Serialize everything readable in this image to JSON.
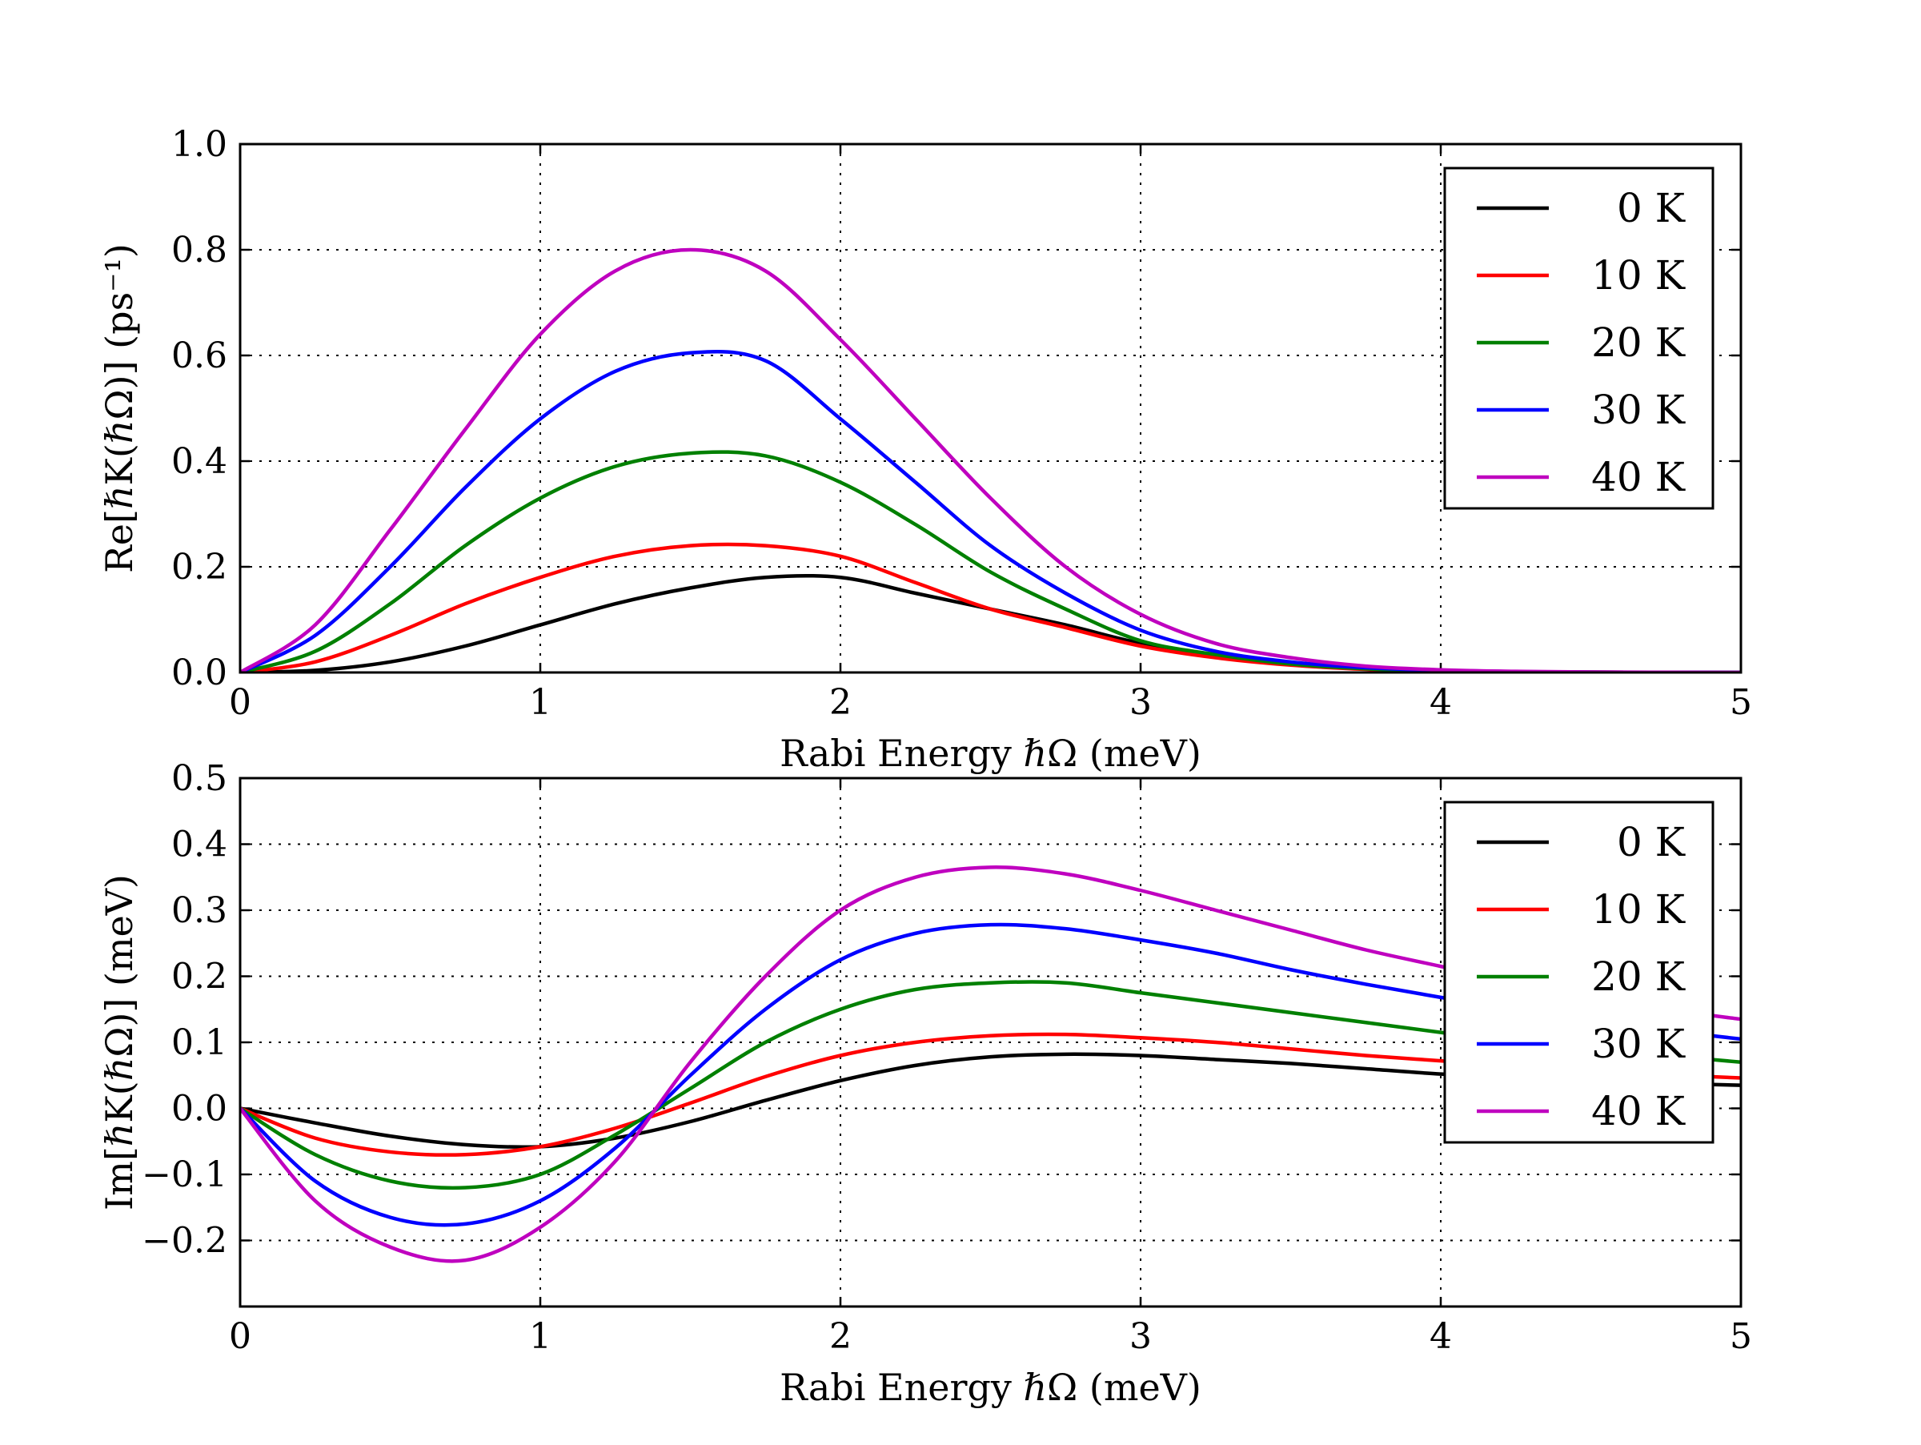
{
  "chart_data": [
    {
      "type": "line",
      "xlabel": "Rabi Energy ℏΩ (meV)",
      "ylabel": "Re[ℏK(ℏΩ)] (ps⁻¹)",
      "xlim": [
        0,
        5
      ],
      "ylim": [
        0,
        1.0
      ],
      "xticks": [
        "0",
        "1",
        "2",
        "3",
        "4",
        "5"
      ],
      "xtick_values": [
        0,
        1,
        2,
        3,
        4,
        5
      ],
      "yticks": [
        "0.0",
        "0.2",
        "0.4",
        "0.6",
        "0.8",
        "1.0"
      ],
      "ytick_values": [
        0,
        0.2,
        0.4,
        0.6,
        0.8,
        1.0
      ],
      "grid": true,
      "legend_position": "top-right",
      "x": [
        0,
        0.25,
        0.5,
        0.75,
        1.0,
        1.25,
        1.5,
        1.75,
        2.0,
        2.25,
        2.5,
        2.75,
        3.0,
        3.25,
        3.5,
        3.75,
        4.0,
        4.25,
        4.5,
        4.75,
        5.0
      ],
      "series": [
        {
          "name": "0 K",
          "color": "#000000",
          "values": [
            0,
            0.004,
            0.02,
            0.05,
            0.09,
            0.13,
            0.16,
            0.18,
            0.18,
            0.15,
            0.12,
            0.09,
            0.055,
            0.032,
            0.017,
            0.008,
            0.003,
            0.001,
            0.0005,
            0.0002,
            0
          ]
        },
        {
          "name": "10 K",
          "color": "#ff0000",
          "values": [
            0,
            0.02,
            0.07,
            0.13,
            0.18,
            0.22,
            0.24,
            0.24,
            0.22,
            0.17,
            0.12,
            0.085,
            0.05,
            0.028,
            0.014,
            0.006,
            0.002,
            0.001,
            0.0005,
            0.0002,
            0
          ]
        },
        {
          "name": "20 K",
          "color": "#008000",
          "values": [
            0,
            0.04,
            0.13,
            0.24,
            0.33,
            0.39,
            0.415,
            0.41,
            0.36,
            0.28,
            0.19,
            0.12,
            0.06,
            0.034,
            0.016,
            0.007,
            0.003,
            0.001,
            0.0005,
            0.0002,
            0
          ]
        },
        {
          "name": "30 K",
          "color": "#0000ff",
          "values": [
            0,
            0.07,
            0.2,
            0.35,
            0.48,
            0.57,
            0.605,
            0.59,
            0.48,
            0.36,
            0.24,
            0.15,
            0.08,
            0.04,
            0.02,
            0.009,
            0.004,
            0.0015,
            0.0006,
            0.0002,
            0
          ]
        },
        {
          "name": "40 K",
          "color": "#bf00bf",
          "values": [
            0,
            0.09,
            0.27,
            0.46,
            0.64,
            0.76,
            0.8,
            0.76,
            0.63,
            0.48,
            0.33,
            0.2,
            0.11,
            0.055,
            0.028,
            0.012,
            0.005,
            0.002,
            0.0008,
            0.0003,
            0
          ]
        }
      ]
    },
    {
      "type": "line",
      "xlabel": "Rabi Energy ℏΩ (meV)",
      "ylabel": "Im[ℏK(ℏΩ)] (meV)",
      "xlim": [
        0,
        5
      ],
      "ylim": [
        -0.3,
        0.5
      ],
      "xticks": [
        "0",
        "1",
        "2",
        "3",
        "4",
        "5"
      ],
      "xtick_values": [
        0,
        1,
        2,
        3,
        4,
        5
      ],
      "yticks": [
        "−0.2",
        "−0.1",
        "0.0",
        "0.1",
        "0.2",
        "0.3",
        "0.4",
        "0.5"
      ],
      "ytick_values": [
        -0.2,
        -0.1,
        0,
        0.1,
        0.2,
        0.3,
        0.4,
        0.5
      ],
      "grid": true,
      "legend_position": "top-right",
      "x": [
        0,
        0.25,
        0.5,
        0.75,
        1.0,
        1.25,
        1.5,
        1.75,
        2.0,
        2.25,
        2.5,
        2.75,
        3.0,
        3.25,
        3.5,
        3.75,
        4.0,
        4.25,
        4.5,
        4.75,
        5.0
      ],
      "series": [
        {
          "name": "0 K",
          "color": "#000000",
          "values": [
            0,
            -0.022,
            -0.042,
            -0.055,
            -0.058,
            -0.045,
            -0.02,
            0.012,
            0.042,
            0.065,
            0.078,
            0.082,
            0.08,
            0.074,
            0.068,
            0.06,
            0.052,
            0.047,
            0.042,
            0.038,
            0.035
          ]
        },
        {
          "name": "10 K",
          "color": "#ff0000",
          "values": [
            0,
            -0.045,
            -0.066,
            -0.07,
            -0.058,
            -0.03,
            0.008,
            0.048,
            0.08,
            0.1,
            0.11,
            0.112,
            0.107,
            0.1,
            0.09,
            0.08,
            0.072,
            0.064,
            0.057,
            0.051,
            0.046
          ]
        },
        {
          "name": "20 K",
          "color": "#008000",
          "values": [
            0,
            -0.07,
            -0.11,
            -0.12,
            -0.1,
            -0.04,
            0.03,
            0.1,
            0.15,
            0.18,
            0.19,
            0.19,
            0.175,
            0.16,
            0.145,
            0.13,
            0.115,
            0.1,
            0.09,
            0.08,
            0.07
          ]
        },
        {
          "name": "30 K",
          "color": "#0000ff",
          "values": [
            0,
            -0.11,
            -0.165,
            -0.175,
            -0.14,
            -0.06,
            0.05,
            0.15,
            0.225,
            0.265,
            0.278,
            0.272,
            0.255,
            0.235,
            0.21,
            0.188,
            0.168,
            0.15,
            0.133,
            0.118,
            0.105
          ]
        },
        {
          "name": "40 K",
          "color": "#bf00bf",
          "values": [
            0,
            -0.14,
            -0.21,
            -0.23,
            -0.18,
            -0.08,
            0.07,
            0.2,
            0.3,
            0.35,
            0.365,
            0.355,
            0.33,
            0.3,
            0.27,
            0.24,
            0.215,
            0.19,
            0.17,
            0.15,
            0.135
          ]
        }
      ]
    }
  ]
}
